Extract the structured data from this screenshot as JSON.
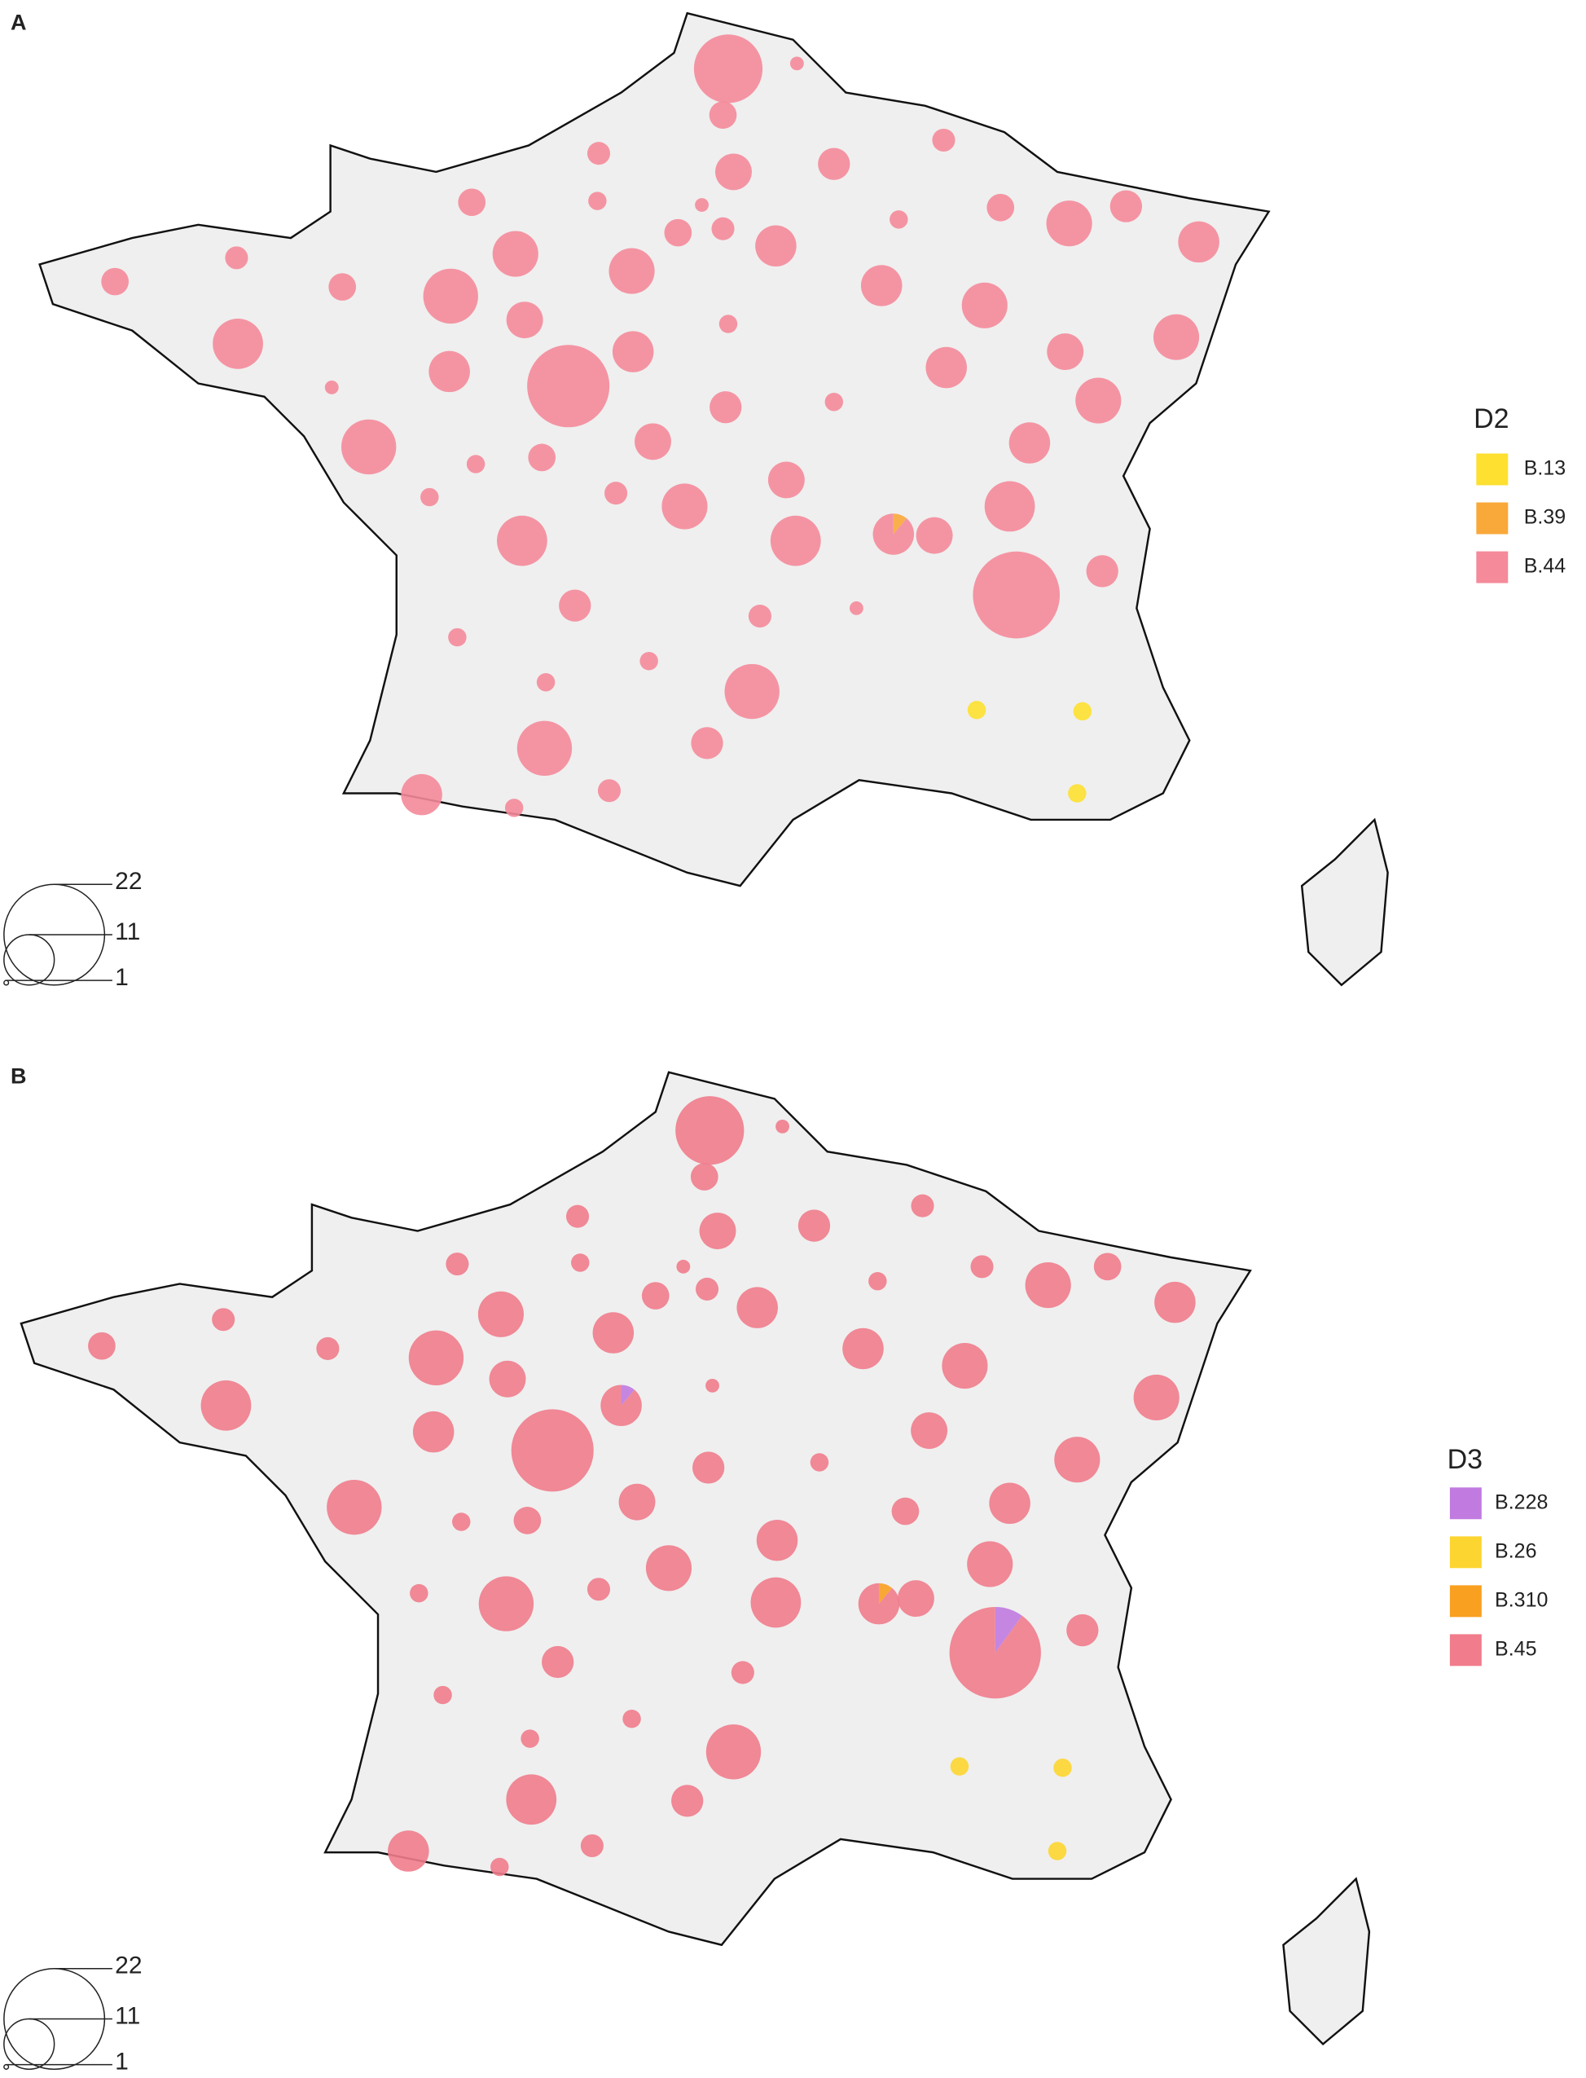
{
  "chart_data": [
    {
      "type": "pie",
      "title": "A",
      "legend_title": "D2",
      "size_legend": [
        22,
        11,
        1
      ],
      "series": [
        {
          "name": "B.13",
          "color": "#fde030",
          "values": [
            null,
            null,
            null,
            null,
            null,
            null,
            null,
            null,
            null,
            null,
            null,
            null,
            null,
            null,
            null,
            null,
            null,
            null,
            null,
            null,
            null,
            null,
            null,
            null,
            null,
            null,
            null,
            null,
            null,
            null,
            null,
            null,
            null,
            null,
            null,
            null,
            null,
            null,
            null,
            null,
            null,
            null,
            null,
            null,
            null,
            null,
            null,
            null,
            null,
            null,
            null,
            null,
            null,
            null,
            null,
            null,
            null,
            null,
            null,
            null,
            null,
            null,
            null,
            null,
            null,
            null,
            null,
            4,
            4,
            4
          ]
        },
        {
          "name": "B.39",
          "color": "#f9a83a",
          "values": [
            null,
            null,
            null,
            null,
            null,
            null,
            null,
            null,
            null,
            null,
            null,
            null,
            null,
            null,
            null,
            null,
            null,
            null,
            null,
            null,
            null,
            null,
            null,
            null,
            null,
            null,
            null,
            null,
            null,
            null,
            null,
            null,
            null,
            null,
            null,
            null,
            null,
            null,
            null,
            null,
            null,
            null,
            null,
            null,
            null,
            null,
            null,
            null,
            null,
            null,
            null,
            1,
            null,
            null,
            null,
            null,
            null,
            null,
            null,
            null,
            null,
            null,
            null,
            null,
            null,
            null,
            null,
            null,
            null,
            null
          ]
        },
        {
          "name": "B.44",
          "color": "#f48a9a",
          "values": [
            15,
            6,
            3,
            5,
            8,
            7,
            5,
            6,
            4,
            3,
            5,
            6,
            9,
            4,
            6,
            10,
            7,
            9,
            5,
            6,
            6,
            10,
            12,
            10,
            9,
            10,
            8,
            4,
            11,
            9,
            9,
            9,
            8,
            10,
            3,
            18,
            4,
            7,
            10,
            12,
            4,
            6,
            8,
            9,
            8,
            10,
            4,
            11,
            5,
            11,
            11,
            8,
            8,
            19,
            7,
            7,
            5,
            3,
            4,
            4,
            4,
            12,
            7,
            12,
            9,
            4,
            5,
            null,
            null,
            null
          ]
        }
      ]
    },
    {
      "type": "pie",
      "title": "B",
      "legend_title": "D3",
      "size_legend": [
        22,
        11,
        1
      ],
      "series": [
        {
          "name": "B.228",
          "color": "#c07ae0",
          "values": [
            null,
            null,
            null,
            null,
            null,
            null,
            null,
            null,
            null,
            null,
            null,
            null,
            null,
            null,
            null,
            null,
            null,
            null,
            null,
            null,
            null,
            null,
            null,
            null,
            null,
            null,
            null,
            null,
            null,
            1,
            null,
            null,
            null,
            null,
            null,
            null,
            null,
            null,
            null,
            null,
            null,
            null,
            null,
            null,
            null,
            null,
            null,
            null,
            null,
            null,
            null,
            null,
            2,
            null,
            null,
            null,
            null,
            null,
            null,
            null,
            null,
            null,
            null,
            null,
            null,
            null,
            null,
            null
          ]
        },
        {
          "name": "B.26",
          "color": "#fdd530",
          "values": [
            null,
            null,
            null,
            null,
            null,
            null,
            null,
            null,
            null,
            null,
            null,
            null,
            null,
            null,
            null,
            null,
            null,
            null,
            null,
            null,
            null,
            null,
            null,
            null,
            null,
            null,
            null,
            null,
            null,
            null,
            null,
            null,
            null,
            null,
            null,
            null,
            null,
            null,
            null,
            null,
            null,
            null,
            null,
            null,
            null,
            null,
            null,
            null,
            null,
            null,
            null,
            null,
            null,
            null,
            null,
            null,
            null,
            null,
            null,
            null,
            null,
            null,
            null,
            null,
            null,
            4,
            4,
            4
          ]
        },
        {
          "name": "B.310",
          "color": "#f9a020",
          "values": [
            null,
            null,
            null,
            null,
            null,
            null,
            null,
            null,
            null,
            null,
            null,
            null,
            null,
            null,
            null,
            null,
            null,
            null,
            null,
            null,
            null,
            null,
            null,
            null,
            null,
            null,
            null,
            null,
            null,
            null,
            null,
            null,
            null,
            null,
            null,
            null,
            null,
            null,
            null,
            null,
            null,
            null,
            null,
            null,
            null,
            null,
            null,
            null,
            null,
            null,
            1,
            null,
            null,
            null,
            null,
            null,
            null,
            null,
            null,
            null,
            null,
            null,
            null,
            null,
            null,
            null,
            null,
            null
          ]
        },
        {
          "name": "B.45",
          "color": "#f07c8c",
          "values": [
            15,
            6,
            3,
            5,
            8,
            7,
            5,
            5,
            4,
            3,
            5,
            6,
            9,
            4,
            5,
            10,
            6,
            9,
            5,
            6,
            5,
            10,
            12,
            9,
            9,
            10,
            8,
            3,
            11,
            8,
            9,
            8,
            10,
            10,
            18,
            4,
            7,
            12,
            4,
            6,
            8,
            6,
            9,
            9,
            10,
            4,
            12,
            5,
            11,
            10,
            8,
            8,
            18,
            7,
            7,
            5,
            4,
            4,
            4,
            12,
            7,
            11,
            9,
            4,
            5,
            null,
            null,
            null
          ]
        }
      ]
    }
  ]
}
